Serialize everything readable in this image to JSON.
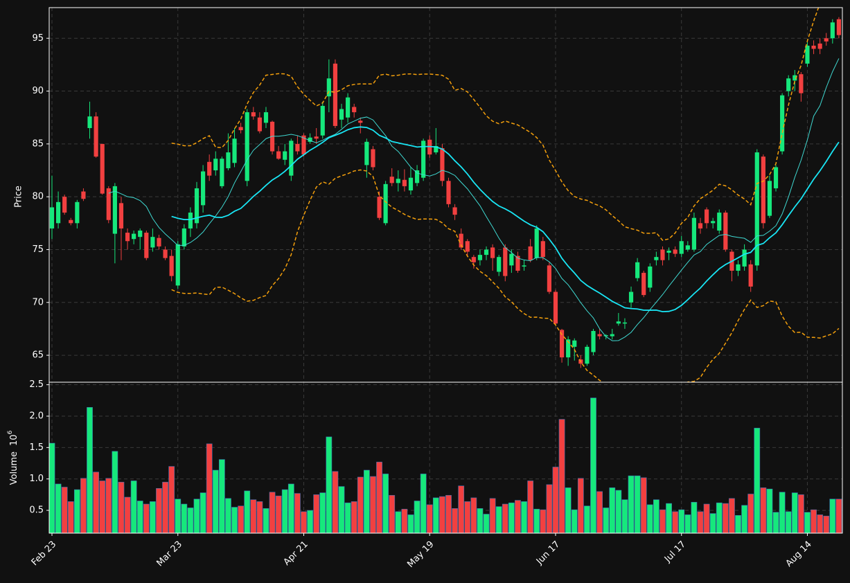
{
  "chart_data": {
    "type": "candlestick",
    "ylabel": "Price",
    "volume_label": "Volume",
    "volume_scale": {
      "base": "10",
      "exponent": "6"
    },
    "x": [
      "Feb 23",
      null,
      null,
      null,
      null,
      null,
      null,
      null,
      null,
      null,
      null,
      null,
      null,
      null,
      null,
      null,
      null,
      null,
      null,
      null,
      "Mar 23",
      null,
      null,
      null,
      null,
      null,
      null,
      null,
      null,
      null,
      null,
      null,
      null,
      null,
      null,
      null,
      null,
      null,
      null,
      null,
      "Apr 21",
      null,
      null,
      null,
      null,
      null,
      null,
      null,
      null,
      null,
      null,
      null,
      null,
      null,
      null,
      null,
      null,
      null,
      null,
      null,
      "May 19",
      null,
      null,
      null,
      null,
      null,
      null,
      null,
      null,
      null,
      null,
      null,
      null,
      null,
      null,
      null,
      null,
      null,
      null,
      null,
      "Jun 17",
      null,
      null,
      null,
      null,
      null,
      null,
      null,
      null,
      null,
      null,
      null,
      null,
      null,
      null,
      null,
      null,
      null,
      null,
      null,
      "Jul 17",
      null,
      null,
      null,
      null,
      null,
      null,
      null,
      null,
      null,
      null,
      null,
      null,
      null,
      null,
      null,
      null,
      null,
      null,
      null,
      "Aug 14",
      null,
      null,
      null,
      null,
      null
    ],
    "open": [
      77,
      77.5,
      80,
      77.8,
      77.5,
      80.5,
      86.5,
      87.6,
      85,
      80.8,
      76.5,
      79.4,
      76.6,
      76,
      76.2,
      76.6,
      75.2,
      76.1,
      75,
      74.4,
      71.6,
      75.3,
      77,
      77.5,
      79.2,
      83.3,
      82.5,
      81,
      82.7,
      83.2,
      86.6,
      81.5,
      88,
      87.5,
      87,
      87.1,
      84.3,
      83.5,
      82,
      85,
      85.8,
      85.2,
      85.7,
      85.8,
      89.5,
      92.6,
      87.3,
      87.5,
      88.5,
      87.2,
      83,
      84.5,
      80,
      77.5,
      81.9,
      81.3,
      81.6,
      80.6,
      81.3,
      81.8,
      85.4,
      84.2,
      84.6,
      81.5,
      79,
      76.5,
      75.8,
      74.3,
      74,
      74.5,
      75.2,
      72.9,
      75.2,
      73.5,
      74.4,
      73.4,
      75.3,
      74.2,
      75.8,
      73.5,
      71,
      67.4,
      64.8,
      65.8,
      64.6,
      64.2,
      65.3,
      67,
      66.8,
      66.8,
      68,
      68,
      70,
      72.3,
      72.8,
      71.4,
      74,
      75,
      74.7,
      75,
      74.6,
      75,
      75,
      77.5,
      78.8,
      77.5,
      76.8,
      78.5,
      74.8,
      73,
      73.4,
      73.6,
      73.5,
      83.8,
      78.2,
      80.8,
      84.3,
      90,
      91,
      91.6,
      92.6,
      94.3,
      94.5,
      95,
      95,
      96.8
    ],
    "high": [
      82,
      80.5,
      80.2,
      78,
      79.7,
      80.8,
      89,
      88,
      85,
      81,
      81.3,
      80,
      77,
      76.8,
      77,
      76.8,
      77,
      76.4,
      75.3,
      75,
      75.8,
      77.4,
      79,
      81.4,
      83,
      84,
      84.3,
      83.8,
      86,
      86.5,
      87,
      88.3,
      88.5,
      88,
      88.5,
      87.2,
      84.8,
      85,
      85.5,
      85.8,
      86,
      86,
      86.5,
      89,
      93,
      93,
      88.8,
      89.8,
      88.8,
      87.5,
      85.5,
      84.8,
      80.5,
      81.5,
      82.7,
      82.5,
      82.6,
      82.8,
      83,
      85.5,
      85.8,
      86.5,
      85,
      81.8,
      79.3,
      77,
      76,
      74.5,
      75,
      75.3,
      75.5,
      74.5,
      75.5,
      75,
      74.8,
      74,
      76,
      77.3,
      76.2,
      73.8,
      71.2,
      67.5,
      66.8,
      66.6,
      65,
      66,
      67.5,
      67.5,
      67,
      67.5,
      69,
      68.5,
      71.5,
      74.2,
      73,
      73.7,
      74.8,
      75.3,
      75.2,
      75.3,
      76.3,
      75.8,
      78.5,
      78,
      79,
      78,
      78.8,
      78.7,
      75,
      74,
      75.5,
      74,
      84.5,
      84,
      82,
      83,
      89.8,
      91.5,
      92,
      91.8,
      94.8,
      94.8,
      95,
      95.5,
      96.8,
      97
    ],
    "low": [
      76,
      77,
      78.3,
      77.3,
      77,
      79.6,
      85.5,
      83.7,
      80.2,
      77.5,
      73.7,
      74,
      75,
      75.5,
      75,
      74,
      74.8,
      75,
      74,
      72,
      71.3,
      75,
      76.2,
      77,
      78.5,
      81.5,
      82,
      80.8,
      82.5,
      82.8,
      86,
      81,
      87.3,
      86,
      86.5,
      84,
      83.5,
      83,
      81.5,
      84,
      83.8,
      85,
      85,
      85.5,
      88,
      86.5,
      86.5,
      87,
      87.5,
      86,
      81.8,
      82.5,
      77.8,
      77.3,
      81,
      80.5,
      80.5,
      80.2,
      81,
      81.5,
      83.7,
      84,
      81,
      79,
      77.8,
      75,
      74.3,
      73.2,
      73.5,
      74,
      73,
      72.5,
      72,
      72.8,
      72.8,
      73,
      73.8,
      74,
      74,
      70.8,
      67.8,
      64.3,
      64,
      64.5,
      63.8,
      64,
      65,
      66.5,
      66.5,
      66.5,
      67.8,
      67.5,
      69.5,
      72,
      70.5,
      71,
      73.5,
      73.5,
      74,
      74.3,
      74.3,
      74.8,
      74.8,
      76.5,
      77,
      77,
      76.5,
      74.8,
      72,
      72.5,
      73,
      71,
      73,
      77,
      78,
      80.5,
      84,
      89.5,
      90,
      89,
      92.3,
      93.5,
      93.5,
      94.3,
      94.5,
      95
    ],
    "close": [
      79,
      79.5,
      78.5,
      77.5,
      79.5,
      79.8,
      87.6,
      83.8,
      80.3,
      77.8,
      81,
      77,
      75.8,
      76.5,
      76.8,
      74.2,
      76.2,
      75.3,
      74.2,
      72.5,
      75.5,
      77,
      78.5,
      80.8,
      82.4,
      82,
      83.6,
      83.6,
      84.2,
      85.5,
      86.3,
      88,
      87.6,
      86.2,
      88,
      84.3,
      83.6,
      84.3,
      85.3,
      84.3,
      84,
      85.6,
      85.5,
      88.6,
      91.2,
      86.7,
      88.3,
      89.4,
      88,
      87,
      85.2,
      82.8,
      78,
      81.2,
      81.3,
      81.7,
      81,
      81.8,
      82.5,
      85.3,
      84,
      84.8,
      81.5,
      79.3,
      78.3,
      75.2,
      74.8,
      73.8,
      74.5,
      75,
      74.2,
      74.3,
      72.5,
      74.6,
      73,
      73.5,
      74,
      77,
      74.3,
      71,
      68,
      64.8,
      66.5,
      66.4,
      64.2,
      65.8,
      67.3,
      66.8,
      66.9,
      67,
      68.2,
      68.1,
      71,
      73.8,
      70.7,
      73.4,
      74.3,
      74,
      74.9,
      74.6,
      75.8,
      75.4,
      78,
      77,
      77.5,
      77.7,
      78.5,
      75,
      73,
      73.6,
      75,
      71.5,
      84.2,
      77.5,
      81.5,
      82.8,
      89.6,
      91.2,
      91.5,
      89.8,
      94.3,
      94,
      94,
      94.7,
      96.5,
      95.3
    ],
    "volume": [
      1.57,
      0.92,
      0.87,
      0.64,
      0.83,
      1.01,
      2.14,
      1.11,
      0.97,
      1.01,
      1.44,
      0.95,
      0.71,
      0.97,
      0.65,
      0.6,
      0.64,
      0.85,
      0.95,
      1.2,
      0.68,
      0.6,
      0.54,
      0.68,
      0.78,
      1.56,
      1.14,
      1.31,
      0.69,
      0.55,
      0.57,
      0.81,
      0.67,
      0.64,
      0.53,
      0.79,
      0.73,
      0.83,
      0.92,
      0.77,
      0.48,
      0.5,
      0.75,
      0.78,
      1.67,
      1.12,
      0.88,
      0.62,
      0.64,
      1.03,
      1.14,
      1.04,
      1.27,
      1.08,
      0.74,
      0.48,
      0.52,
      0.43,
      0.65,
      1.08,
      0.59,
      0.7,
      0.72,
      0.74,
      0.53,
      0.89,
      0.64,
      0.7,
      0.53,
      0.44,
      0.69,
      0.56,
      0.6,
      0.62,
      0.66,
      0.64,
      0.97,
      0.52,
      0.51,
      0.91,
      1.19,
      1.95,
      0.86,
      0.51,
      1.01,
      0.57,
      2.29,
      0.8,
      0.54,
      0.86,
      0.82,
      0.67,
      1.05,
      1.05,
      1.02,
      0.59,
      0.67,
      0.51,
      0.61,
      0.48,
      0.51,
      0.43,
      0.63,
      0.48,
      0.6,
      0.45,
      0.62,
      0.61,
      0.69,
      0.42,
      0.58,
      0.76,
      1.81,
      0.86,
      0.84,
      0.47,
      0.79,
      0.48,
      0.78,
      0.75,
      0.47,
      0.51,
      0.43,
      0.41,
      0.68,
      0.68
    ],
    "up_color": "#16e87c",
    "down_color": "#f24040",
    "moving_averages": [
      10,
      20
    ],
    "ma_colors": [
      "#3fd9d2",
      "#19e6f5"
    ],
    "bollinger": {
      "window": 20,
      "std": 2,
      "color": "#f5a00c"
    },
    "ylim": [
      62.45,
      97.9
    ],
    "yticks": [
      65,
      70,
      75,
      80,
      85,
      90,
      95
    ],
    "volume_ylim": [
      0.137,
      2.54
    ],
    "volume_yticks": [
      0.5,
      {
        "value": 1.0,
        "label": "1.0"
      },
      1.5,
      {
        "value": 2.0,
        "label": "2.0"
      },
      2.5
    ],
    "grid": true
  }
}
